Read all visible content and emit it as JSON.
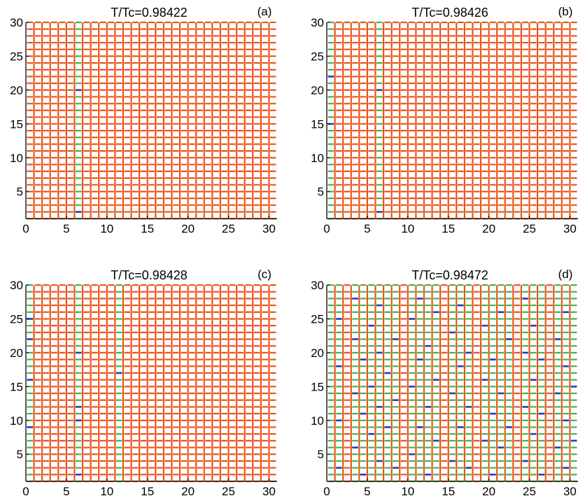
{
  "colors": {
    "orange": "#e8541c",
    "green": "#3db54a",
    "blue": "#1f3fbf",
    "axis": "#000000"
  },
  "chart_data": [
    {
      "type": "heatmap",
      "panel_label": "(a)",
      "title": "T/Tc=0.98422",
      "xlabel": "",
      "ylabel": "",
      "xlim": [
        0,
        31
      ],
      "ylim": [
        1,
        30
      ],
      "xticks": [
        "0",
        "5",
        "10",
        "15",
        "20",
        "25",
        "30"
      ],
      "yticks": [
        "5",
        "10",
        "15",
        "20",
        "25",
        "30"
      ],
      "green_columns": [
        6.5
      ],
      "blue_bonds": [
        {
          "x": 6.5,
          "y": 2
        },
        {
          "x": 6.5,
          "y": 20
        }
      ]
    },
    {
      "type": "heatmap",
      "panel_label": "(b)",
      "title": "T/Tc=0.98426",
      "xlabel": "",
      "ylabel": "",
      "xlim": [
        0,
        31
      ],
      "ylim": [
        1,
        30
      ],
      "xticks": [
        "0",
        "5",
        "10",
        "15",
        "20",
        "25",
        "30"
      ],
      "yticks": [
        "5",
        "10",
        "15",
        "20",
        "25",
        "30"
      ],
      "green_columns": [
        0.5,
        6.5
      ],
      "blue_bonds": [
        {
          "x": 0.5,
          "y": 15
        },
        {
          "x": 0.5,
          "y": 22
        },
        {
          "x": 6.5,
          "y": 2
        },
        {
          "x": 6.5,
          "y": 20
        }
      ]
    },
    {
      "type": "heatmap",
      "panel_label": "(c)",
      "title": "T/Tc=0.98428",
      "xlabel": "",
      "ylabel": "",
      "xlim": [
        0,
        31
      ],
      "ylim": [
        1,
        30
      ],
      "xticks": [
        "0",
        "5",
        "10",
        "15",
        "20",
        "25",
        "30"
      ],
      "yticks": [
        "5",
        "10",
        "15",
        "20",
        "25",
        "30"
      ],
      "green_columns": [
        0.5,
        6.5,
        11.5
      ],
      "blue_bonds": [
        {
          "x": 0.5,
          "y": 9
        },
        {
          "x": 0.5,
          "y": 16
        },
        {
          "x": 0.5,
          "y": 22
        },
        {
          "x": 0.5,
          "y": 25
        },
        {
          "x": 6.5,
          "y": 2
        },
        {
          "x": 6.5,
          "y": 10
        },
        {
          "x": 6.5,
          "y": 12
        },
        {
          "x": 6.5,
          "y": 20
        },
        {
          "x": 11.5,
          "y": 17
        }
      ]
    },
    {
      "type": "heatmap",
      "panel_label": "(d)",
      "title": "T/Tc=0.98472",
      "xlabel": "",
      "ylabel": "",
      "xlim": [
        0,
        31
      ],
      "ylim": [
        1,
        30
      ],
      "xticks": [
        "0",
        "5",
        "10",
        "15",
        "20",
        "25",
        "30"
      ],
      "yticks": [
        "5",
        "10",
        "15",
        "20",
        "25",
        "30"
      ],
      "green_columns": [
        0.5,
        1.5,
        3.5,
        4.5,
        5.5,
        6.5,
        7.5,
        8.5,
        10.5,
        11.5,
        12.5,
        13.5,
        15.5,
        16.5,
        17.5,
        19.5,
        20.5,
        21.5,
        22.5,
        24.5,
        25.5,
        26.5,
        28.5,
        29.5,
        30.5
      ],
      "blue_bonds": [
        {
          "x": 1.5,
          "y": 3
        },
        {
          "x": 1.5,
          "y": 10
        },
        {
          "x": 1.5,
          "y": 18
        },
        {
          "x": 1.5,
          "y": 25
        },
        {
          "x": 3.5,
          "y": 6
        },
        {
          "x": 3.5,
          "y": 14
        },
        {
          "x": 3.5,
          "y": 22
        },
        {
          "x": 3.5,
          "y": 28
        },
        {
          "x": 4.5,
          "y": 2
        },
        {
          "x": 4.5,
          "y": 11
        },
        {
          "x": 4.5,
          "y": 19
        },
        {
          "x": 5.5,
          "y": 8
        },
        {
          "x": 5.5,
          "y": 15
        },
        {
          "x": 5.5,
          "y": 24
        },
        {
          "x": 6.5,
          "y": 4
        },
        {
          "x": 6.5,
          "y": 12
        },
        {
          "x": 6.5,
          "y": 20
        },
        {
          "x": 6.5,
          "y": 27
        },
        {
          "x": 7.5,
          "y": 9
        },
        {
          "x": 7.5,
          "y": 17
        },
        {
          "x": 8.5,
          "y": 3
        },
        {
          "x": 8.5,
          "y": 13
        },
        {
          "x": 8.5,
          "y": 22
        },
        {
          "x": 10.5,
          "y": 5
        },
        {
          "x": 10.5,
          "y": 15
        },
        {
          "x": 10.5,
          "y": 25
        },
        {
          "x": 11.5,
          "y": 9
        },
        {
          "x": 11.5,
          "y": 19
        },
        {
          "x": 11.5,
          "y": 28
        },
        {
          "x": 12.5,
          "y": 2
        },
        {
          "x": 12.5,
          "y": 12
        },
        {
          "x": 12.5,
          "y": 21
        },
        {
          "x": 13.5,
          "y": 7
        },
        {
          "x": 13.5,
          "y": 16
        },
        {
          "x": 13.5,
          "y": 26
        },
        {
          "x": 15.5,
          "y": 4
        },
        {
          "x": 15.5,
          "y": 14
        },
        {
          "x": 15.5,
          "y": 23
        },
        {
          "x": 16.5,
          "y": 9
        },
        {
          "x": 16.5,
          "y": 18
        },
        {
          "x": 16.5,
          "y": 27
        },
        {
          "x": 17.5,
          "y": 3
        },
        {
          "x": 17.5,
          "y": 12
        },
        {
          "x": 17.5,
          "y": 20
        },
        {
          "x": 19.5,
          "y": 7
        },
        {
          "x": 19.5,
          "y": 16
        },
        {
          "x": 19.5,
          "y": 24
        },
        {
          "x": 20.5,
          "y": 2
        },
        {
          "x": 20.5,
          "y": 11
        },
        {
          "x": 20.5,
          "y": 19
        },
        {
          "x": 21.5,
          "y": 6
        },
        {
          "x": 21.5,
          "y": 14
        },
        {
          "x": 21.5,
          "y": 26
        },
        {
          "x": 22.5,
          "y": 9
        },
        {
          "x": 22.5,
          "y": 22
        },
        {
          "x": 24.5,
          "y": 4
        },
        {
          "x": 24.5,
          "y": 12
        },
        {
          "x": 24.5,
          "y": 20
        },
        {
          "x": 24.5,
          "y": 28
        },
        {
          "x": 25.5,
          "y": 8
        },
        {
          "x": 25.5,
          "y": 16
        },
        {
          "x": 25.5,
          "y": 24
        },
        {
          "x": 26.5,
          "y": 2
        },
        {
          "x": 26.5,
          "y": 11
        },
        {
          "x": 26.5,
          "y": 19
        },
        {
          "x": 28.5,
          "y": 6
        },
        {
          "x": 28.5,
          "y": 14
        },
        {
          "x": 28.5,
          "y": 22
        },
        {
          "x": 29.5,
          "y": 3
        },
        {
          "x": 29.5,
          "y": 10
        },
        {
          "x": 29.5,
          "y": 18
        },
        {
          "x": 29.5,
          "y": 26
        },
        {
          "x": 30.5,
          "y": 7
        },
        {
          "x": 30.5,
          "y": 15
        }
      ]
    }
  ]
}
